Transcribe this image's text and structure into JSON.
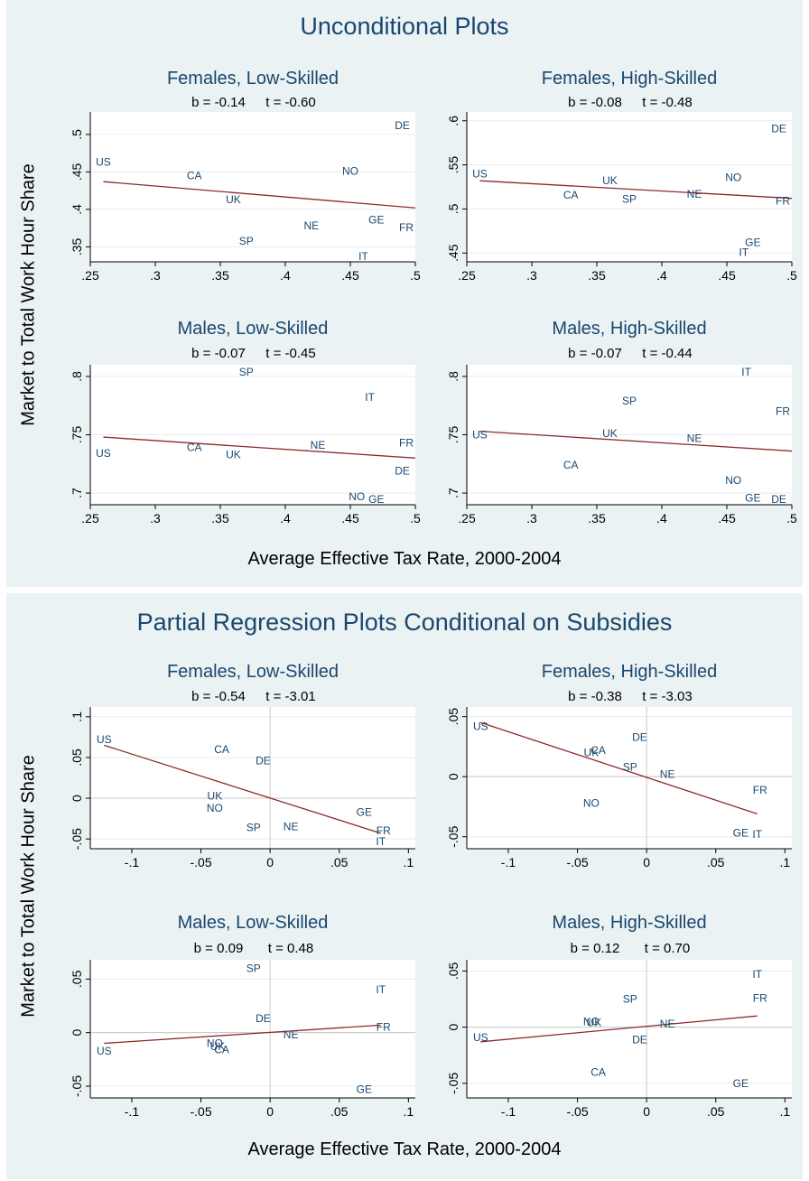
{
  "panels": [
    {
      "title": "Unconditional Plots",
      "xlabel": "Average Effective Tax Rate, 2000-2004",
      "ylabel": "Market to Total Work Hour Share"
    },
    {
      "title": "Partial Regression Plots Conditional on Subsidies",
      "xlabel": "Average Effective Tax Rate, 2000-2004",
      "ylabel": "Market to Total Work Hour Share"
    }
  ],
  "colors": {
    "background": "#eaf2f3",
    "plot_bg": "#ffffff",
    "label": "#1a476f",
    "fit_line": "#8b2a2a",
    "grid": "#e6ecee",
    "zero_line": "#c8c8c8"
  },
  "chart_data": [
    {
      "type": "scatter",
      "panel": 0,
      "title": "Females, Low-Skilled",
      "b": "b = -0.14",
      "t": "t = -0.60",
      "xlim": [
        0.25,
        0.5
      ],
      "ylim": [
        0.33,
        0.53
      ],
      "xticks": [
        0.25,
        0.3,
        0.35,
        0.4,
        0.45,
        0.5
      ],
      "xtick_labels": [
        ".25",
        ".3",
        ".35",
        ".4",
        ".45",
        ".5"
      ],
      "yticks": [
        0.35,
        0.4,
        0.45,
        0.5
      ],
      "ytick_labels": [
        ".35",
        ".4",
        ".45",
        ".5"
      ],
      "zero_lines": false,
      "points": [
        {
          "label": "US",
          "x": 0.26,
          "y": 0.463
        },
        {
          "label": "CA",
          "x": 0.33,
          "y": 0.445
        },
        {
          "label": "UK",
          "x": 0.36,
          "y": 0.413
        },
        {
          "label": "SP",
          "x": 0.37,
          "y": 0.358
        },
        {
          "label": "NE",
          "x": 0.42,
          "y": 0.378
        },
        {
          "label": "NO",
          "x": 0.45,
          "y": 0.451
        },
        {
          "label": "GE",
          "x": 0.47,
          "y": 0.386
        },
        {
          "label": "IT",
          "x": 0.46,
          "y": 0.337
        },
        {
          "label": "FR",
          "x": 0.5,
          "y": 0.376
        },
        {
          "label": "DE",
          "x": 0.49,
          "y": 0.512
        }
      ],
      "fit": [
        [
          0.26,
          0.437
        ],
        [
          0.5,
          0.402
        ]
      ]
    },
    {
      "type": "scatter",
      "panel": 0,
      "title": "Females, High-Skilled",
      "b": "b = -0.08",
      "t": "t = -0.48",
      "xlim": [
        0.25,
        0.5
      ],
      "ylim": [
        0.44,
        0.61
      ],
      "xticks": [
        0.25,
        0.3,
        0.35,
        0.4,
        0.45,
        0.5
      ],
      "xtick_labels": [
        ".25",
        ".3",
        ".35",
        ".4",
        ".45",
        ".5"
      ],
      "yticks": [
        0.45,
        0.5,
        0.55,
        0.6
      ],
      "ytick_labels": [
        ".45",
        ".5",
        ".55",
        ".6"
      ],
      "zero_lines": false,
      "points": [
        {
          "label": "US",
          "x": 0.26,
          "y": 0.54
        },
        {
          "label": "CA",
          "x": 0.33,
          "y": 0.516
        },
        {
          "label": "UK",
          "x": 0.36,
          "y": 0.532
        },
        {
          "label": "SP",
          "x": 0.375,
          "y": 0.511
        },
        {
          "label": "NE",
          "x": 0.425,
          "y": 0.517
        },
        {
          "label": "NO",
          "x": 0.455,
          "y": 0.536
        },
        {
          "label": "GE",
          "x": 0.47,
          "y": 0.462
        },
        {
          "label": "IT",
          "x": 0.463,
          "y": 0.451
        },
        {
          "label": "FR",
          "x": 0.5,
          "y": 0.509
        },
        {
          "label": "DE",
          "x": 0.49,
          "y": 0.591
        }
      ],
      "fit": [
        [
          0.26,
          0.532
        ],
        [
          0.5,
          0.512
        ]
      ]
    },
    {
      "type": "scatter",
      "panel": 0,
      "title": "Males, Low-Skilled",
      "b": "b = -0.07",
      "t": "t = -0.45",
      "xlim": [
        0.25,
        0.5
      ],
      "ylim": [
        0.69,
        0.81
      ],
      "xticks": [
        0.25,
        0.3,
        0.35,
        0.4,
        0.45,
        0.5
      ],
      "xtick_labels": [
        ".25",
        ".3",
        ".35",
        ".4",
        ".45",
        ".5"
      ],
      "yticks": [
        0.7,
        0.75,
        0.8
      ],
      "ytick_labels": [
        ".7",
        ".75",
        ".8"
      ],
      "zero_lines": false,
      "points": [
        {
          "label": "US",
          "x": 0.26,
          "y": 0.734
        },
        {
          "label": "CA",
          "x": 0.33,
          "y": 0.739
        },
        {
          "label": "UK",
          "x": 0.36,
          "y": 0.733
        },
        {
          "label": "SP",
          "x": 0.37,
          "y": 0.804
        },
        {
          "label": "NE",
          "x": 0.425,
          "y": 0.741
        },
        {
          "label": "IT",
          "x": 0.465,
          "y": 0.782
        },
        {
          "label": "FR",
          "x": 0.5,
          "y": 0.743
        },
        {
          "label": "DE",
          "x": 0.49,
          "y": 0.719
        },
        {
          "label": "NO",
          "x": 0.455,
          "y": 0.697
        },
        {
          "label": "GE",
          "x": 0.47,
          "y": 0.692
        }
      ],
      "fit": [
        [
          0.26,
          0.748
        ],
        [
          0.5,
          0.73
        ]
      ]
    },
    {
      "type": "scatter",
      "panel": 0,
      "title": "Males, High-Skilled",
      "b": "b = -0.07",
      "t": "t = -0.44",
      "xlim": [
        0.25,
        0.5
      ],
      "ylim": [
        0.69,
        0.81
      ],
      "xticks": [
        0.25,
        0.3,
        0.35,
        0.4,
        0.45,
        0.5
      ],
      "xtick_labels": [
        ".25",
        ".3",
        ".35",
        ".4",
        ".45",
        ".5"
      ],
      "yticks": [
        0.7,
        0.75,
        0.8
      ],
      "ytick_labels": [
        ".7",
        ".75",
        ".8"
      ],
      "zero_lines": false,
      "points": [
        {
          "label": "US",
          "x": 0.26,
          "y": 0.75
        },
        {
          "label": "CA",
          "x": 0.33,
          "y": 0.724
        },
        {
          "label": "UK",
          "x": 0.36,
          "y": 0.751
        },
        {
          "label": "SP",
          "x": 0.375,
          "y": 0.779
        },
        {
          "label": "NE",
          "x": 0.425,
          "y": 0.747
        },
        {
          "label": "IT",
          "x": 0.465,
          "y": 0.804
        },
        {
          "label": "FR",
          "x": 0.5,
          "y": 0.77
        },
        {
          "label": "NO",
          "x": 0.455,
          "y": 0.711
        },
        {
          "label": "GE",
          "x": 0.47,
          "y": 0.696
        },
        {
          "label": "DE",
          "x": 0.49,
          "y": 0.694
        }
      ],
      "fit": [
        [
          0.26,
          0.753
        ],
        [
          0.5,
          0.736
        ]
      ]
    },
    {
      "type": "scatter",
      "panel": 1,
      "title": "Females, Low-Skilled",
      "b": "b = -0.54",
      "t": "t = -3.01",
      "xlim": [
        -0.13,
        0.105
      ],
      "ylim": [
        -0.062,
        0.112
      ],
      "xticks": [
        -0.1,
        -0.05,
        0,
        0.05,
        0.1
      ],
      "xtick_labels": [
        "-.1",
        "-.05",
        "0",
        ".05",
        ".1"
      ],
      "yticks": [
        -0.05,
        0,
        0.05,
        0.1
      ],
      "ytick_labels": [
        "-.05",
        "0",
        ".05",
        ".1"
      ],
      "zero_lines": true,
      "points": [
        {
          "label": "US",
          "x": -0.12,
          "y": 0.072
        },
        {
          "label": "CA",
          "x": -0.035,
          "y": 0.06
        },
        {
          "label": "DE",
          "x": -0.005,
          "y": 0.046
        },
        {
          "label": "UK",
          "x": -0.04,
          "y": 0.003
        },
        {
          "label": "NO",
          "x": -0.04,
          "y": -0.012
        },
        {
          "label": "SP",
          "x": -0.012,
          "y": -0.036
        },
        {
          "label": "NE",
          "x": 0.015,
          "y": -0.035
        },
        {
          "label": "GE",
          "x": 0.068,
          "y": -0.017
        },
        {
          "label": "FR",
          "x": 0.082,
          "y": -0.04
        },
        {
          "label": "IT",
          "x": 0.08,
          "y": -0.053
        }
      ],
      "fit": [
        [
          -0.12,
          0.065
        ],
        [
          0.08,
          -0.043
        ]
      ]
    },
    {
      "type": "scatter",
      "panel": 1,
      "title": "Females, High-Skilled",
      "b": "b = -0.38",
      "t": "t = -3.03",
      "xlim": [
        -0.13,
        0.105
      ],
      "ylim": [
        -0.06,
        0.058
      ],
      "xticks": [
        -0.1,
        -0.05,
        0,
        0.05,
        0.1
      ],
      "xtick_labels": [
        "-.1",
        "-.05",
        "0",
        ".05",
        ".1"
      ],
      "yticks": [
        -0.05,
        0,
        0.05
      ],
      "ytick_labels": [
        "-.05",
        "0",
        ".05"
      ],
      "zero_lines": true,
      "points": [
        {
          "label": "US",
          "x": -0.12,
          "y": 0.042
        },
        {
          "label": "CA",
          "x": -0.035,
          "y": 0.022
        },
        {
          "label": "UK",
          "x": -0.04,
          "y": 0.02
        },
        {
          "label": "DE",
          "x": -0.005,
          "y": 0.033
        },
        {
          "label": "SP",
          "x": -0.012,
          "y": 0.008
        },
        {
          "label": "NE",
          "x": 0.015,
          "y": 0.002
        },
        {
          "label": "NO",
          "x": -0.04,
          "y": -0.022
        },
        {
          "label": "FR",
          "x": 0.082,
          "y": -0.011
        },
        {
          "label": "GE",
          "x": 0.068,
          "y": -0.047
        },
        {
          "label": "IT",
          "x": 0.08,
          "y": -0.048
        }
      ],
      "fit": [
        [
          -0.12,
          0.045
        ],
        [
          0.08,
          -0.031
        ]
      ]
    },
    {
      "type": "scatter",
      "panel": 1,
      "title": "Males, Low-Skilled",
      "b": "b = 0.09",
      "t": "t = 0.48",
      "xlim": [
        -0.13,
        0.105
      ],
      "ylim": [
        -0.061,
        0.068
      ],
      "xticks": [
        -0.1,
        -0.05,
        0,
        0.05,
        0.1
      ],
      "xtick_labels": [
        "-.1",
        "-.05",
        "0",
        ".05",
        ".1"
      ],
      "yticks": [
        -0.05,
        0,
        0.05
      ],
      "ytick_labels": [
        "-.05",
        "0",
        ".05"
      ],
      "zero_lines": true,
      "points": [
        {
          "label": "SP",
          "x": -0.012,
          "y": 0.06
        },
        {
          "label": "IT",
          "x": 0.08,
          "y": 0.04
        },
        {
          "label": "DE",
          "x": -0.005,
          "y": 0.013
        },
        {
          "label": "FR",
          "x": 0.082,
          "y": 0.005
        },
        {
          "label": "NE",
          "x": 0.015,
          "y": -0.002
        },
        {
          "label": "NO",
          "x": -0.04,
          "y": -0.01
        },
        {
          "label": "UK",
          "x": -0.038,
          "y": -0.013
        },
        {
          "label": "CA",
          "x": -0.035,
          "y": -0.016
        },
        {
          "label": "US",
          "x": -0.12,
          "y": -0.017
        },
        {
          "label": "GE",
          "x": 0.068,
          "y": -0.053
        }
      ],
      "fit": [
        [
          -0.12,
          -0.01
        ],
        [
          0.08,
          0.007
        ]
      ]
    },
    {
      "type": "scatter",
      "panel": 1,
      "title": "Males, High-Skilled",
      "b": "b = 0.12",
      "t": "t = 0.70",
      "xlim": [
        -0.13,
        0.105
      ],
      "ylim": [
        -0.063,
        0.06
      ],
      "xticks": [
        -0.1,
        -0.05,
        0,
        0.05,
        0.1
      ],
      "xtick_labels": [
        "-.1",
        "-.05",
        "0",
        ".05",
        ".1"
      ],
      "yticks": [
        -0.05,
        0,
        0.05
      ],
      "ytick_labels": [
        "-.05",
        "0",
        ".05"
      ],
      "zero_lines": true,
      "points": [
        {
          "label": "IT",
          "x": 0.08,
          "y": 0.047
        },
        {
          "label": "FR",
          "x": 0.082,
          "y": 0.026
        },
        {
          "label": "SP",
          "x": -0.012,
          "y": 0.025
        },
        {
          "label": "NO",
          "x": -0.04,
          "y": 0.005
        },
        {
          "label": "UK",
          "x": -0.038,
          "y": 0.004
        },
        {
          "label": "NE",
          "x": 0.015,
          "y": 0.003
        },
        {
          "label": "US",
          "x": -0.12,
          "y": -0.009
        },
        {
          "label": "DE",
          "x": -0.005,
          "y": -0.011
        },
        {
          "label": "CA",
          "x": -0.035,
          "y": -0.04
        },
        {
          "label": "GE",
          "x": 0.068,
          "y": -0.05
        }
      ],
      "fit": [
        [
          -0.12,
          -0.013
        ],
        [
          0.08,
          0.01
        ]
      ]
    }
  ]
}
